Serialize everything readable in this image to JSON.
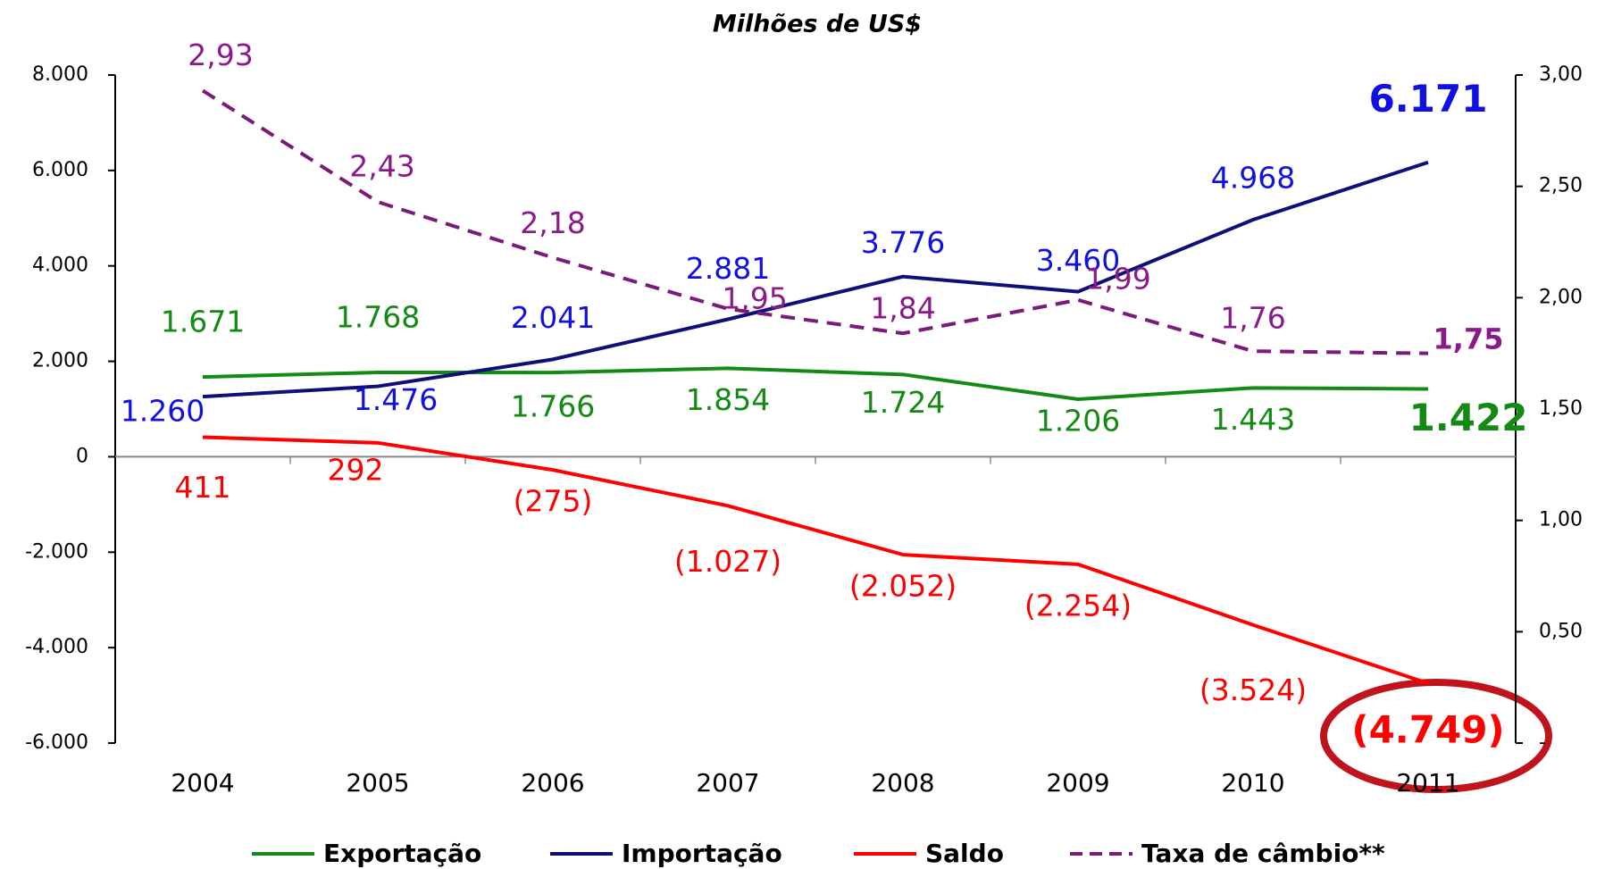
{
  "chart_data": {
    "type": "line",
    "title": "Milhões de US$",
    "categories": [
      "2004",
      "2005",
      "2006",
      "2007",
      "2008",
      "2009",
      "2010",
      "2011"
    ],
    "ylim": [
      -6000,
      8000
    ],
    "yticks": [
      {
        "value": -6000,
        "label": "-6.000"
      },
      {
        "value": -4000,
        "label": "-4.000"
      },
      {
        "value": -2000,
        "label": "-2.000"
      },
      0,
      {
        "value": 2000,
        "label": "2.000"
      },
      {
        "value": 4000,
        "label": "4.000"
      },
      {
        "value": 6000,
        "label": "6.000"
      },
      {
        "value": 8000,
        "label": "8.000"
      }
    ],
    "y2lim": [
      0,
      3.0
    ],
    "y2ticks": [
      {
        "value": 0,
        "label": "-"
      },
      {
        "value": 0.5,
        "label": "0,50"
      },
      {
        "value": 1.0,
        "label": "1,00"
      },
      {
        "value": 1.5,
        "label": "1,50"
      },
      {
        "value": 2.0,
        "label": "2,00"
      },
      {
        "value": 2.5,
        "label": "2,50"
      },
      {
        "value": 3.0,
        "label": "3,00"
      }
    ],
    "series": [
      {
        "name": "Exportação",
        "color": "#138a13",
        "values": [
          1671,
          1768,
          1766,
          1854,
          1724,
          1206,
          1443,
          1422
        ],
        "value_labels": [
          "1.671",
          "1.768",
          "1.766",
          "1.854",
          "1.724",
          "1.206",
          "1.443",
          "1.422"
        ]
      },
      {
        "name": "Importação",
        "color": "#0f0f7a",
        "label_color": "#1010e0",
        "values": [
          1260,
          1476,
          2041,
          2881,
          3776,
          3460,
          4968,
          6171
        ],
        "value_labels": [
          "1.260",
          "1.476",
          "2.041",
          "2.881",
          "3.776",
          "3.460",
          "4.968",
          "6.171"
        ]
      },
      {
        "name": "Saldo",
        "color": "#ff0000",
        "values": [
          411,
          292,
          -275,
          -1027,
          -2052,
          -2254,
          -3524,
          -4749
        ],
        "value_labels": [
          "411",
          "292",
          "(275)",
          "(1.027)",
          "(2.052)",
          "(2.254)",
          "(3.524)",
          "(4.749)"
        ]
      },
      {
        "name": "Taxa de câmbio**",
        "color": "#7a1a7a",
        "label_color": "#8a1a8a",
        "dashed": true,
        "axis": "y2",
        "values": [
          2.93,
          2.43,
          2.18,
          1.95,
          1.84,
          1.99,
          1.76,
          1.75
        ],
        "value_labels": [
          "2,93",
          "2,43",
          "2,18",
          "1,95",
          "1,84",
          "1,99",
          "1,76",
          "1,75"
        ]
      }
    ]
  }
}
